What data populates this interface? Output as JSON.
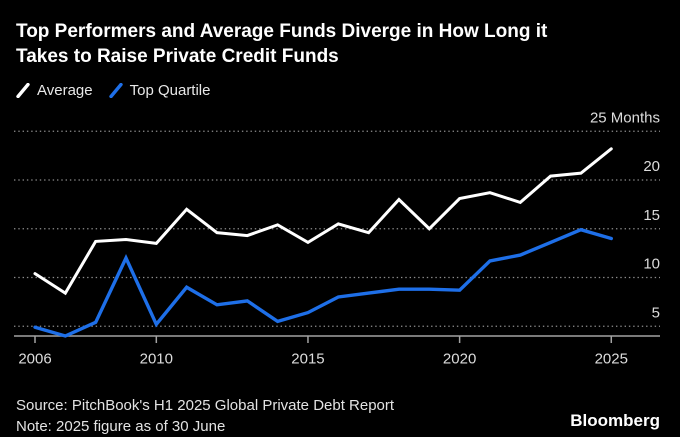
{
  "chart": {
    "title_lines": [
      "Top Performers and Average Funds Diverge in How Long it",
      "Takes to Raise Private Credit Funds"
    ]
  },
  "legend": [
    {
      "label": "Average",
      "color": "#ffffff"
    },
    {
      "label": "Top Quartile",
      "color": "#1e6fe8"
    }
  ],
  "footer": {
    "source": "Source: PitchBook's H1 2025 Global Private Debt Report",
    "note": "Note: 2025 figure as of 30 June",
    "brand": "Bloomberg"
  },
  "colors": {
    "background": "#000000",
    "title": "#ffffff",
    "grid": "#8d8d8d",
    "axis": "#a3a3a3",
    "tick_label": "#dcdcdc"
  },
  "chart_data": {
    "type": "line",
    "x": [
      2006,
      2007,
      2008,
      2009,
      2010,
      2011,
      2012,
      2013,
      2014,
      2015,
      2016,
      2017,
      2018,
      2019,
      2020,
      2021,
      2022,
      2023,
      2024,
      2025
    ],
    "series": [
      {
        "name": "Average",
        "color": "#ffffff",
        "values": [
          10.4,
          8.4,
          13.7,
          13.9,
          13.5,
          17.0,
          14.6,
          14.3,
          15.4,
          13.6,
          15.5,
          14.6,
          18.0,
          15.0,
          18.1,
          18.7,
          17.7,
          20.4,
          20.7,
          23.2
        ]
      },
      {
        "name": "Top Quartile",
        "color": "#1e6fe8",
        "values": [
          4.9,
          4.0,
          5.4,
          12.0,
          5.2,
          9.0,
          7.2,
          7.6,
          5.5,
          6.4,
          8.0,
          8.4,
          8.8,
          8.8,
          8.7,
          11.7,
          12.3,
          13.6,
          14.9,
          14.0
        ]
      }
    ],
    "title": "Top Performers and Average Funds Diverge in How Long it Takes to Raise Private Credit Funds",
    "xlabel": "",
    "ylabel": "Months",
    "y_ticks": [
      5,
      10,
      15,
      20,
      25
    ],
    "y_tick_labels": [
      "5",
      "10",
      "15",
      "20",
      "25 Months"
    ],
    "x_ticks": [
      2006,
      2010,
      2015,
      2020,
      2025
    ],
    "x_tick_labels": [
      "2006",
      "2010",
      "2015",
      "2020",
      "2025"
    ],
    "ylim": [
      4,
      26
    ],
    "xlim": [
      2006,
      2025
    ],
    "grid": "horizontal-dotted",
    "legend_position": "top-left"
  }
}
